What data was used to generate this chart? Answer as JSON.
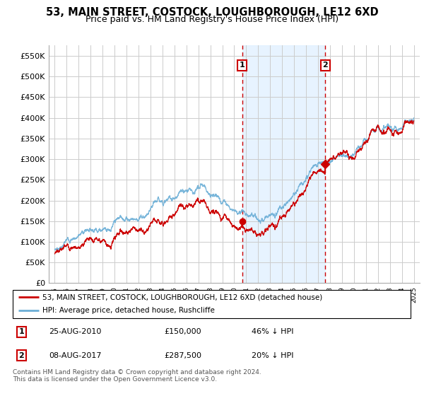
{
  "title": "53, MAIN STREET, COSTOCK, LOUGHBOROUGH, LE12 6XD",
  "subtitle": "Price paid vs. HM Land Registry's House Price Index (HPI)",
  "ylim": [
    0,
    575000
  ],
  "xlim_start": 1994.5,
  "xlim_end": 2025.5,
  "hpi_color": "#6baed6",
  "property_color": "#cc0000",
  "vline_color": "#cc0000",
  "background_color": "#ffffff",
  "grid_color": "#cccccc",
  "panel_color": "#ddeeff",
  "transaction1": {
    "date": "25-AUG-2010",
    "price": 150000,
    "hpi_pct": "46% ↓ HPI",
    "year": 2010.65
  },
  "transaction2": {
    "date": "08-AUG-2017",
    "price": 287500,
    "hpi_pct": "20% ↓ HPI",
    "year": 2017.6
  },
  "legend_line1": "53, MAIN STREET, COSTOCK, LOUGHBOROUGH, LE12 6XD (detached house)",
  "legend_line2": "HPI: Average price, detached house, Rushcliffe",
  "footer": "Contains HM Land Registry data © Crown copyright and database right 2024.\nThis data is licensed under the Open Government Licence v3.0.",
  "yticks": [
    0,
    50000,
    100000,
    150000,
    200000,
    250000,
    300000,
    350000,
    400000,
    450000,
    500000,
    550000
  ],
  "ylabels": [
    "£0",
    "£50K",
    "£100K",
    "£150K",
    "£200K",
    "£250K",
    "£300K",
    "£350K",
    "£400K",
    "£450K",
    "£500K",
    "£550K"
  ]
}
